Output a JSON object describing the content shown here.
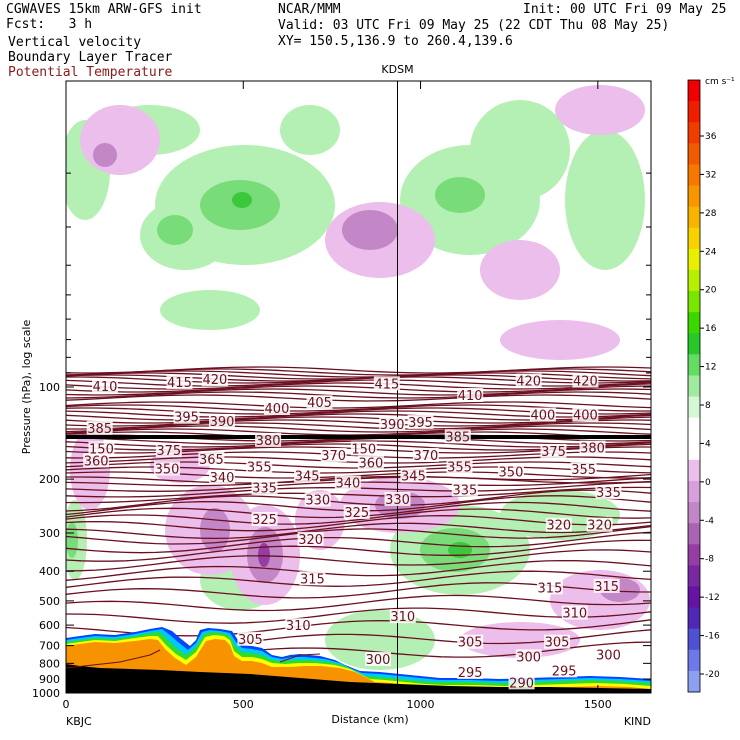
{
  "header": {
    "model": "CGWAVES 15km ARW-GFS init",
    "fcst_label": "Fcst:",
    "fcst_value": "3 h",
    "org": "NCAR/MMM",
    "init": "Init: 00 UTC Fri 09 May 25",
    "valid": "Valid: 03 UTC Fri 09 May 25 (22 CDT Thu 08 May 25)",
    "xy": "XY= 150.5,136.9 to 260.4,139.6",
    "field1": "Vertical velocity",
    "field2": "Boundary Layer Tracer",
    "field3": "Potential Temperature"
  },
  "colors": {
    "theta": "#6b1020",
    "theta_label": "#8b1a1a",
    "terrain_fill": "#f79200"
  },
  "chart_data": {
    "type": "heatmap",
    "xlabel": "Distance (km)",
    "ylabel": "Pressure (hPa), log scale",
    "xlim": [
      0,
      1650
    ],
    "ylim_hPa": [
      1000,
      10
    ],
    "y_scale": "log",
    "x_ticks": [
      0,
      500,
      1000,
      1500
    ],
    "y_ticks": [
      100,
      200,
      300,
      400,
      500,
      600,
      700,
      800,
      900,
      1000
    ],
    "left_station": "KBJC",
    "right_station": "KIND",
    "cross_marker": {
      "label": "KDSM",
      "x_km": 935
    },
    "colorbar": {
      "unit": "cm s⁻¹",
      "labels": [
        "36",
        "32",
        "28",
        "24",
        "20",
        "16",
        "12",
        "8",
        "4",
        "0",
        "-4",
        "-8",
        "-12",
        "-16",
        "-20"
      ]
    },
    "theta_labels": [
      {
        "text": "410",
        "x": 110,
        "p": 100
      },
      {
        "text": "415",
        "x": 320,
        "p": 97
      },
      {
        "text": "420",
        "x": 420,
        "p": 95
      },
      {
        "text": "415",
        "x": 905,
        "p": 98
      },
      {
        "text": "410",
        "x": 1140,
        "p": 107
      },
      {
        "text": "420",
        "x": 1305,
        "p": 96
      },
      {
        "text": "420",
        "x": 1465,
        "p": 96
      },
      {
        "text": "395",
        "x": 340,
        "p": 126
      },
      {
        "text": "390",
        "x": 440,
        "p": 130
      },
      {
        "text": "400",
        "x": 595,
        "p": 118
      },
      {
        "text": "405",
        "x": 715,
        "p": 113
      },
      {
        "text": "400",
        "x": 1345,
        "p": 124
      },
      {
        "text": "400",
        "x": 1465,
        "p": 124
      },
      {
        "text": "385",
        "x": 95,
        "p": 137
      },
      {
        "text": "380",
        "x": 570,
        "p": 150
      },
      {
        "text": "390",
        "x": 920,
        "p": 133
      },
      {
        "text": "395",
        "x": 1000,
        "p": 131
      },
      {
        "text": "385",
        "x": 1105,
        "p": 146
      },
      {
        "text": "375",
        "x": 290,
        "p": 162
      },
      {
        "text": "370",
        "x": 755,
        "p": 168
      },
      {
        "text": "370",
        "x": 1015,
        "p": 168
      },
      {
        "text": "375",
        "x": 1375,
        "p": 163
      },
      {
        "text": "380",
        "x": 1485,
        "p": 159
      },
      {
        "text": "360",
        "x": 85,
        "p": 175
      },
      {
        "text": "365",
        "x": 410,
        "p": 173
      },
      {
        "text": "360",
        "x": 860,
        "p": 178
      },
      {
        "text": "350",
        "x": 285,
        "p": 186
      },
      {
        "text": "355",
        "x": 545,
        "p": 183
      },
      {
        "text": "355",
        "x": 1110,
        "p": 183
      },
      {
        "text": "350",
        "x": 1255,
        "p": 190
      },
      {
        "text": "355",
        "x": 1460,
        "p": 187
      },
      {
        "text": "340",
        "x": 440,
        "p": 198
      },
      {
        "text": "345",
        "x": 680,
        "p": 196
      },
      {
        "text": "340",
        "x": 795,
        "p": 207
      },
      {
        "text": "345",
        "x": 980,
        "p": 196
      },
      {
        "text": "335",
        "x": 560,
        "p": 215
      },
      {
        "text": "335",
        "x": 1125,
        "p": 218
      },
      {
        "text": "335",
        "x": 1530,
        "p": 222
      },
      {
        "text": "330",
        "x": 710,
        "p": 235
      },
      {
        "text": "330",
        "x": 935,
        "p": 234
      },
      {
        "text": "325",
        "x": 560,
        "p": 272
      },
      {
        "text": "325",
        "x": 820,
        "p": 258
      },
      {
        "text": "320",
        "x": 690,
        "p": 316
      },
      {
        "text": "320",
        "x": 1390,
        "p": 284
      },
      {
        "text": "320",
        "x": 1505,
        "p": 284
      },
      {
        "text": "315",
        "x": 695,
        "p": 425
      },
      {
        "text": "315",
        "x": 1365,
        "p": 455
      },
      {
        "text": "315",
        "x": 1525,
        "p": 450
      },
      {
        "text": "310",
        "x": 655,
        "p": 605
      },
      {
        "text": "310",
        "x": 950,
        "p": 565
      },
      {
        "text": "310",
        "x": 1435,
        "p": 550
      },
      {
        "text": "305",
        "x": 520,
        "p": 670
      },
      {
        "text": "305",
        "x": 1140,
        "p": 685
      },
      {
        "text": "305",
        "x": 1385,
        "p": 685
      },
      {
        "text": "300",
        "x": 880,
        "p": 780
      },
      {
        "text": "300",
        "x": 1305,
        "p": 765
      },
      {
        "text": "300",
        "x": 1530,
        "p": 755
      },
      {
        "text": "295",
        "x": 1140,
        "p": 860
      },
      {
        "text": "295",
        "x": 1405,
        "p": 850
      },
      {
        "text": "290",
        "x": 1285,
        "p": 930
      },
      {
        "text": "150",
        "x": 100,
        "p": 160
      },
      {
        "text": "150",
        "x": 840,
        "p": 160
      }
    ]
  }
}
